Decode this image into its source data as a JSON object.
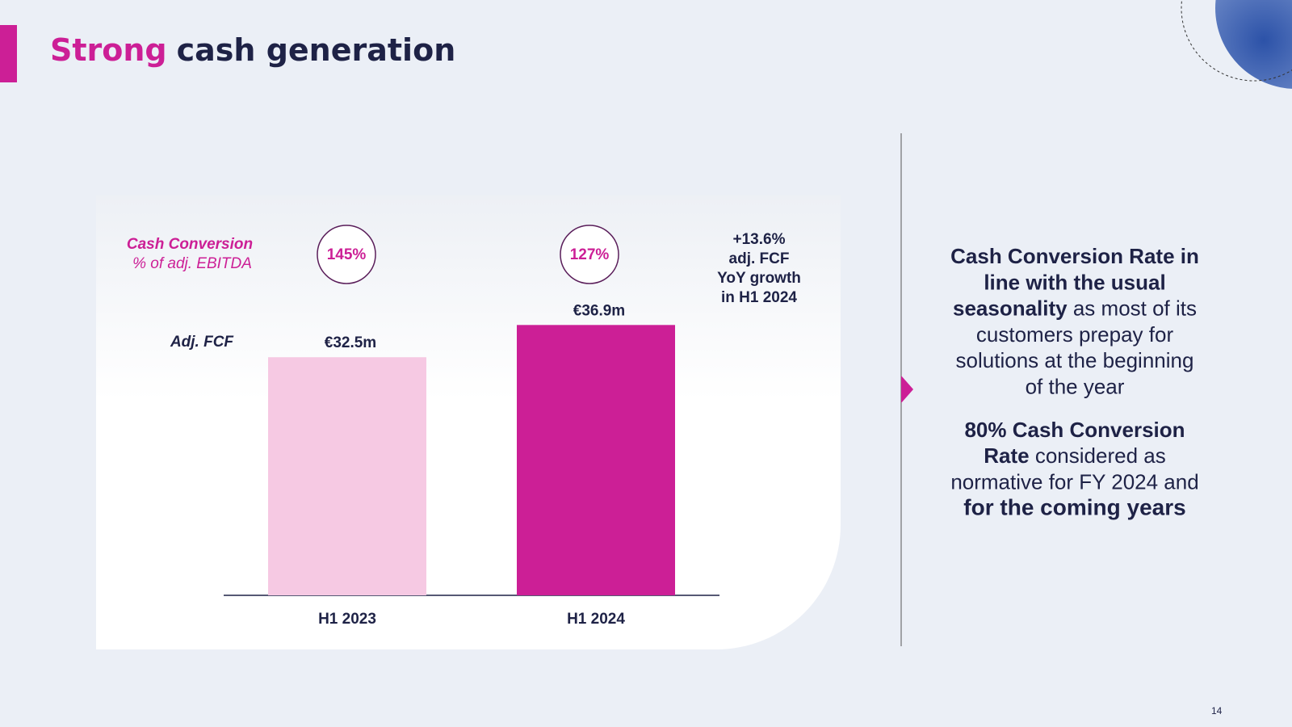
{
  "header": {
    "title_accent": "Strong",
    "title_rest": "cash generation"
  },
  "chart_data": {
    "type": "bar",
    "categories": [
      "H1 2023",
      "H1 2024"
    ],
    "values": [
      32.5,
      36.9
    ],
    "value_labels": [
      "€32.5m",
      "€36.9m"
    ],
    "colors": [
      "#f6c9e3",
      "#cc1f96"
    ],
    "series_label": "Adj. FCF",
    "conversion": {
      "label": [
        "Cash Conversion",
        "% of adj. EBITDA"
      ],
      "values": [
        145,
        127
      ],
      "value_labels": [
        "145%",
        "127%"
      ]
    },
    "annotation": [
      "+13.6%",
      "adj. FCF",
      "YoY growth",
      "in H1 2024"
    ]
  },
  "notes": [
    {
      "lines": [
        [
          {
            "text": "Cash Conversion Rate in",
            "bold": true
          }
        ],
        [
          {
            "text": "line with the usual",
            "bold": true
          }
        ],
        [
          {
            "text": "seasonality",
            "bold": true
          },
          {
            "text": " as most of its",
            "bold": false
          }
        ],
        [
          {
            "text": "customers prepay for",
            "bold": false
          }
        ],
        [
          {
            "text": "solutions at the beginning",
            "bold": false
          }
        ],
        [
          {
            "text": "of the year",
            "bold": false
          }
        ]
      ]
    },
    {
      "lines": [
        [
          {
            "text": "80% Cash Conversion",
            "bold": true
          }
        ],
        [
          {
            "text": "Rate",
            "bold": true
          },
          {
            "text": " considered as",
            "bold": false
          }
        ],
        [
          {
            "text": "normative for FY 2024 and",
            "bold": false
          }
        ],
        [
          {
            "text": "for the coming years",
            "bold": true
          }
        ]
      ]
    }
  ],
  "page_number": "14"
}
